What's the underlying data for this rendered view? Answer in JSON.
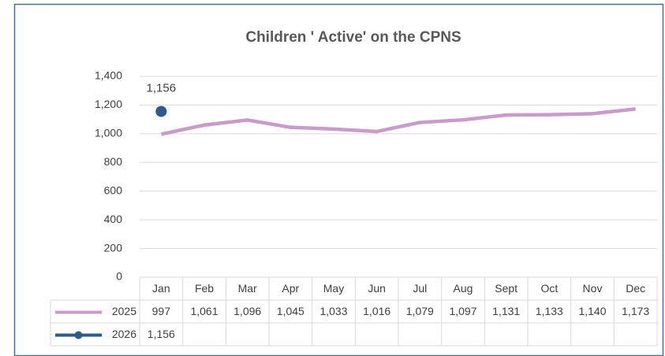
{
  "chart_data": {
    "type": "line",
    "title": "Children ' Active' on the CPNS",
    "categories": [
      "Jan",
      "Feb",
      "Mar",
      "Apr",
      "May",
      "Jun",
      "Jul",
      "Aug",
      "Sept",
      "Oct",
      "Nov",
      "Dec"
    ],
    "series": [
      {
        "name": "2025",
        "color": "#c99bcb",
        "values": [
          997,
          1061,
          1096,
          1045,
          1033,
          1016,
          1079,
          1097,
          1131,
          1133,
          1140,
          1173
        ],
        "value_labels": [
          "997",
          "1,061",
          "1,096",
          "1,045",
          "1,033",
          "1,016",
          "1,079",
          "1,097",
          "1,131",
          "1,133",
          "1,140",
          "1,173"
        ]
      },
      {
        "name": "2026",
        "color": "#2e5a8c",
        "values": [
          1156,
          null,
          null,
          null,
          null,
          null,
          null,
          null,
          null,
          null,
          null,
          null
        ],
        "value_labels": [
          "1,156",
          null,
          null,
          null,
          null,
          null,
          null,
          null,
          null,
          null,
          null,
          null
        ]
      }
    ],
    "ylim": [
      0,
      1400
    ],
    "yticks": [
      0,
      200,
      400,
      600,
      800,
      {
        "value": 1000,
        "label": "1,000"
      },
      {
        "value": 1200,
        "label": "1,200"
      },
      {
        "value": 1400,
        "label": "1,400"
      }
    ],
    "grid": true
  }
}
